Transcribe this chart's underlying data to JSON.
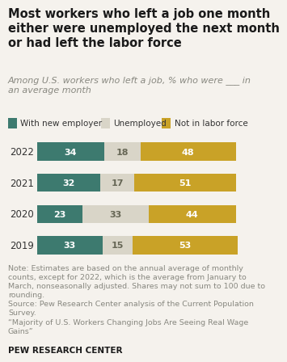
{
  "title": "Most workers who left a job one month\neither were unemployed the next month\nor had left the labor force",
  "subtitle": "Among U.S. workers who left a job, % who were ___ in\nan average month",
  "years": [
    "2022",
    "2021",
    "2020",
    "2019"
  ],
  "with_new_employer": [
    34,
    32,
    23,
    33
  ],
  "unemployed": [
    18,
    17,
    33,
    15
  ],
  "not_in_labor_force": [
    48,
    51,
    44,
    53
  ],
  "color_employer": "#3d7a6f",
  "color_unemployed": "#d9d5c8",
  "color_not_in_labor": "#c9a227",
  "legend_labels": [
    "With new employer",
    "Unemployed",
    "Not in labor force"
  ],
  "note_line1": "Note: Estimates are based on the annual average of monthly\ncounts, except for 2022, which is the average from January to\nMarch, nonseasonally adjusted. Shares may not sum to 100 due to\nrounding.",
  "note_line2": "Source: Pew Research Center analysis of the Current Population\nSurvey.",
  "note_line3": "“Majority of U.S. Workers Changing Jobs Are Seeing Real Wage\nGains”",
  "source_label": "PEW RESEARCH CENTER",
  "bg_color": "#f5f2ed",
  "bar_height": 0.58,
  "title_fontsize": 10.5,
  "subtitle_fontsize": 8.0,
  "label_fontsize": 8.0,
  "note_fontsize": 6.8,
  "tick_fontsize": 8.5,
  "legend_fontsize": 7.5
}
